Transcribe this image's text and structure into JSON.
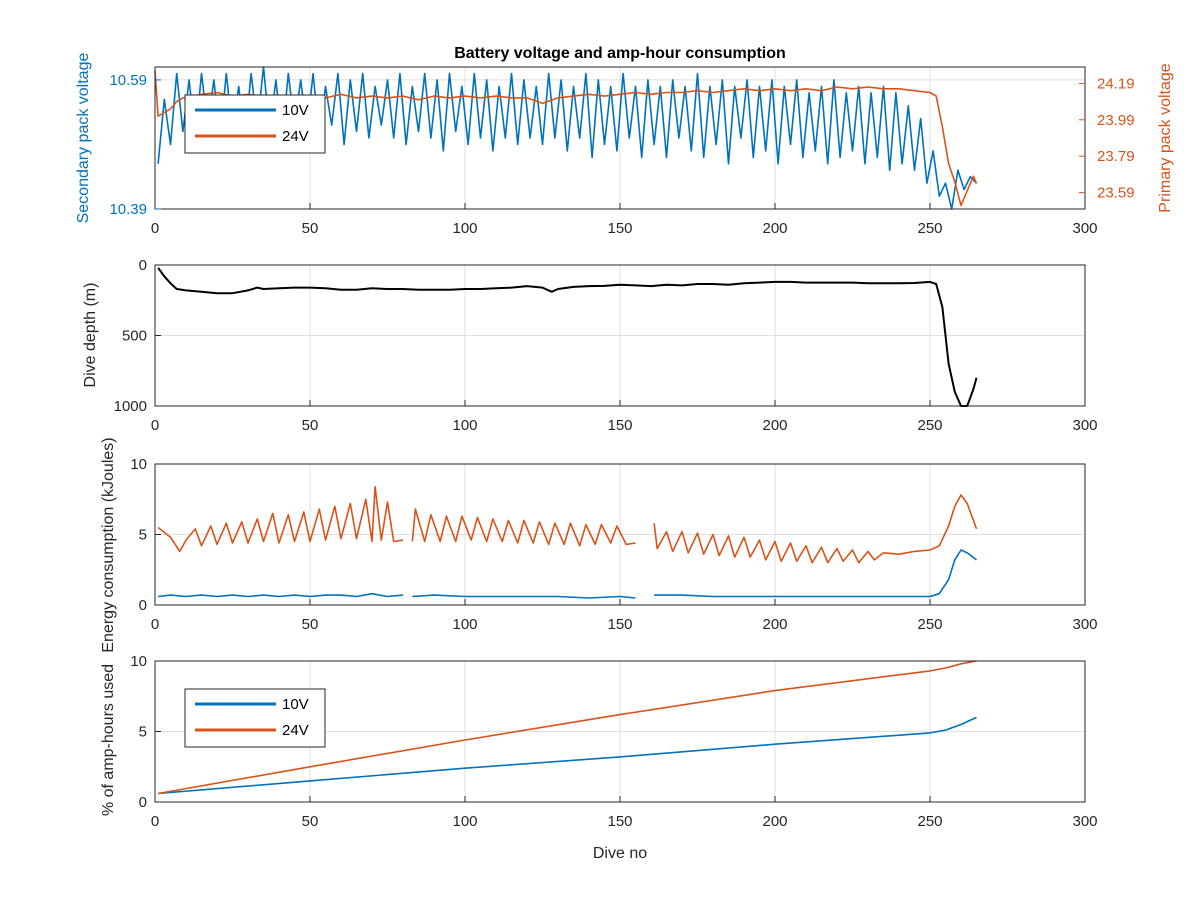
{
  "colors": {
    "c10": "#0072BD",
    "c24": "#D95319",
    "depth": "#000000",
    "grid": "#dfdfdf",
    "axis": "#262626"
  },
  "chart_data": [
    {
      "type": "line",
      "title": "Battery voltage and amp-hour consumption",
      "xlabel": "",
      "ylabel": "Secondary pack voltage",
      "ylabel_right": "Primary pack voltage",
      "xlim": [
        0,
        300
      ],
      "ylim": [
        10.39,
        10.61
      ],
      "ylim_right": [
        23.5,
        24.28
      ],
      "xticks": [
        "0",
        "50",
        "100",
        "150",
        "200",
        "250",
        "300"
      ],
      "yticks": [
        "10.39",
        "10.59"
      ],
      "yticks_right": [
        "23.59",
        "23.79",
        "23.99",
        "24.19"
      ],
      "legend": [
        "10V",
        "24V"
      ],
      "legend_position": "top-left",
      "grid": true,
      "series": [
        {
          "name": "10V",
          "axis": "left",
          "x": [
            1,
            3,
            5,
            7,
            9,
            11,
            13,
            15,
            17,
            19,
            21,
            23,
            25,
            27,
            29,
            31,
            33,
            35,
            37,
            39,
            41,
            43,
            45,
            47,
            49,
            51,
            53,
            55,
            57,
            59,
            61,
            63,
            65,
            67,
            69,
            71,
            73,
            75,
            77,
            79,
            81,
            83,
            85,
            87,
            89,
            91,
            93,
            95,
            97,
            99,
            101,
            103,
            105,
            107,
            109,
            111,
            113,
            115,
            117,
            119,
            121,
            123,
            125,
            127,
            129,
            131,
            133,
            135,
            137,
            139,
            141,
            143,
            145,
            147,
            149,
            151,
            153,
            155,
            157,
            159,
            161,
            163,
            165,
            167,
            169,
            171,
            173,
            175,
            177,
            179,
            181,
            183,
            185,
            187,
            189,
            191,
            193,
            195,
            197,
            199,
            201,
            203,
            205,
            207,
            209,
            211,
            213,
            215,
            217,
            219,
            221,
            223,
            225,
            227,
            229,
            231,
            233,
            235,
            237,
            239,
            241,
            243,
            245,
            247,
            249,
            251,
            253,
            255,
            257,
            259,
            261,
            263,
            265
          ],
          "y": [
            10.46,
            10.56,
            10.49,
            10.6,
            10.51,
            10.59,
            10.5,
            10.6,
            10.52,
            10.59,
            10.5,
            10.6,
            10.51,
            10.58,
            10.5,
            10.6,
            10.52,
            10.61,
            10.51,
            10.59,
            10.5,
            10.6,
            10.52,
            10.59,
            10.51,
            10.6,
            10.5,
            10.58,
            10.52,
            10.6,
            10.49,
            10.59,
            10.51,
            10.6,
            10.5,
            10.58,
            10.52,
            10.59,
            10.5,
            10.6,
            10.49,
            10.58,
            10.51,
            10.6,
            10.5,
            10.59,
            10.48,
            10.6,
            10.51,
            10.58,
            10.49,
            10.6,
            10.5,
            10.59,
            10.48,
            10.58,
            10.5,
            10.6,
            10.49,
            10.59,
            10.5,
            10.58,
            10.49,
            10.6,
            10.5,
            10.59,
            10.48,
            10.58,
            10.5,
            10.6,
            10.47,
            10.59,
            10.49,
            10.58,
            10.48,
            10.6,
            10.5,
            10.58,
            10.47,
            10.59,
            10.49,
            10.58,
            10.47,
            10.59,
            10.5,
            10.58,
            10.48,
            10.6,
            10.47,
            10.58,
            10.49,
            10.59,
            10.46,
            10.58,
            10.5,
            10.59,
            10.47,
            10.58,
            10.48,
            10.59,
            10.46,
            10.58,
            10.49,
            10.59,
            10.47,
            10.57,
            10.48,
            10.58,
            10.46,
            10.59,
            10.47,
            10.57,
            10.48,
            10.58,
            10.46,
            10.57,
            10.47,
            10.58,
            10.45,
            10.57,
            10.46,
            10.55,
            10.45,
            10.53,
            10.43,
            10.48,
            10.41,
            10.43,
            10.39,
            10.45,
            10.42,
            10.44,
            10.43
          ]
        },
        {
          "name": "24V",
          "axis": "right",
          "x": [
            0,
            1,
            3,
            5,
            7,
            9,
            12,
            15,
            20,
            25,
            30,
            35,
            40,
            45,
            50,
            55,
            60,
            65,
            70,
            75,
            80,
            85,
            90,
            95,
            100,
            105,
            110,
            115,
            120,
            125,
            130,
            135,
            140,
            145,
            150,
            155,
            160,
            165,
            170,
            175,
            180,
            185,
            190,
            195,
            200,
            205,
            210,
            215,
            220,
            225,
            230,
            235,
            240,
            245,
            250,
            252,
            254,
            256,
            258,
            260,
            262,
            264,
            265
          ],
          "y": [
            24.26,
            24.01,
            24.03,
            24.05,
            24.09,
            24.11,
            24.12,
            24.13,
            24.14,
            24.12,
            24.13,
            24.12,
            24.11,
            24.12,
            24.12,
            24.11,
            24.13,
            24.11,
            24.12,
            24.11,
            24.12,
            24.1,
            24.12,
            24.11,
            24.12,
            24.11,
            24.12,
            24.11,
            24.11,
            24.08,
            24.11,
            24.12,
            24.13,
            24.12,
            24.13,
            24.14,
            24.13,
            24.14,
            24.14,
            24.15,
            24.14,
            24.15,
            24.16,
            24.15,
            24.16,
            24.15,
            24.16,
            24.15,
            24.17,
            24.16,
            24.17,
            24.16,
            24.16,
            24.15,
            24.14,
            24.12,
            23.95,
            23.75,
            23.65,
            23.52,
            23.6,
            23.68,
            23.64
          ]
        }
      ]
    },
    {
      "type": "line",
      "xlabel": "",
      "ylabel": "Dive depth (m)",
      "xlim": [
        0,
        300
      ],
      "ylim": [
        0,
        1000
      ],
      "y_reversed": true,
      "xticks": [
        "0",
        "50",
        "100",
        "150",
        "200",
        "250",
        "300"
      ],
      "yticks": [
        "0",
        "500",
        "1000"
      ],
      "grid": true,
      "series": [
        {
          "x": [
            1,
            3,
            5,
            7,
            10,
            15,
            20,
            25,
            30,
            33,
            35,
            40,
            45,
            50,
            55,
            60,
            65,
            70,
            75,
            80,
            85,
            90,
            95,
            100,
            105,
            110,
            115,
            120,
            125,
            128,
            130,
            135,
            140,
            145,
            150,
            155,
            160,
            165,
            170,
            175,
            180,
            185,
            190,
            195,
            200,
            205,
            210,
            215,
            220,
            225,
            230,
            235,
            240,
            245,
            250,
            252,
            254,
            256,
            258,
            260,
            262,
            264,
            265
          ],
          "y": [
            20,
            80,
            130,
            170,
            180,
            190,
            200,
            200,
            180,
            160,
            170,
            165,
            160,
            160,
            165,
            175,
            175,
            165,
            170,
            170,
            175,
            175,
            175,
            170,
            170,
            165,
            160,
            150,
            160,
            190,
            170,
            155,
            150,
            148,
            140,
            145,
            150,
            140,
            145,
            135,
            135,
            140,
            130,
            125,
            120,
            120,
            125,
            125,
            125,
            125,
            130,
            130,
            130,
            128,
            120,
            135,
            300,
            700,
            900,
            1000,
            1000,
            880,
            800
          ]
        }
      ]
    },
    {
      "type": "line",
      "xlabel": "",
      "ylabel": "Energy consumption (kJoules)",
      "xlim": [
        0,
        300
      ],
      "ylim": [
        0,
        10
      ],
      "xticks": [
        "0",
        "50",
        "100",
        "150",
        "200",
        "250",
        "300"
      ],
      "yticks": [
        "0",
        "5",
        "10"
      ],
      "grid": true,
      "series": [
        {
          "name": "10V",
          "x": [
            1,
            5,
            10,
            15,
            20,
            25,
            30,
            35,
            40,
            45,
            50,
            55,
            60,
            65,
            70,
            75,
            80,
            null,
            83,
            90,
            100,
            110,
            120,
            130,
            140,
            150,
            155,
            null,
            161,
            170,
            180,
            190,
            200,
            210,
            220,
            230,
            240,
            250,
            253,
            256,
            258,
            260,
            262,
            265
          ],
          "y": [
            0.6,
            0.7,
            0.6,
            0.7,
            0.6,
            0.7,
            0.6,
            0.7,
            0.6,
            0.7,
            0.6,
            0.7,
            0.7,
            0.6,
            0.8,
            0.6,
            0.7,
            null,
            0.6,
            0.7,
            0.6,
            0.6,
            0.6,
            0.6,
            0.5,
            0.6,
            0.5,
            null,
            0.7,
            0.7,
            0.6,
            0.6,
            0.6,
            0.6,
            0.6,
            0.6,
            0.6,
            0.6,
            0.8,
            1.8,
            3.2,
            3.9,
            3.7,
            3.2
          ]
        },
        {
          "name": "24V",
          "x": [
            1,
            5,
            8,
            10,
            13,
            15,
            18,
            20,
            23,
            25,
            28,
            30,
            33,
            35,
            38,
            40,
            43,
            45,
            48,
            50,
            53,
            55,
            58,
            60,
            63,
            65,
            68,
            70,
            71,
            73,
            75,
            77,
            80,
            null,
            83,
            84,
            87,
            89,
            92,
            94,
            97,
            99,
            102,
            104,
            107,
            109,
            112,
            114,
            117,
            119,
            122,
            124,
            127,
            129,
            132,
            134,
            137,
            139,
            142,
            144,
            147,
            149,
            152,
            155,
            null,
            161,
            162,
            165,
            167,
            170,
            172,
            175,
            177,
            180,
            182,
            185,
            187,
            190,
            192,
            195,
            197,
            200,
            202,
            205,
            207,
            210,
            212,
            215,
            217,
            220,
            222,
            225,
            227,
            230,
            232,
            235,
            240,
            245,
            250,
            253,
            256,
            258,
            260,
            262,
            265
          ],
          "y": [
            5.5,
            4.8,
            3.8,
            4.6,
            5.4,
            4.2,
            5.6,
            4.3,
            5.8,
            4.4,
            5.9,
            4.4,
            6.1,
            4.5,
            6.5,
            4.4,
            6.4,
            4.5,
            6.6,
            4.5,
            6.8,
            4.6,
            7,
            4.7,
            7.2,
            4.7,
            7.5,
            4.5,
            8.4,
            4.6,
            7.3,
            4.5,
            4.6,
            null,
            4.5,
            6.8,
            4.5,
            6.4,
            4.5,
            6.3,
            4.5,
            6.3,
            4.6,
            6.2,
            4.5,
            6.1,
            4.5,
            6,
            4.4,
            6,
            4.4,
            5.9,
            4.3,
            5.8,
            4.3,
            5.8,
            4.2,
            5.7,
            4.3,
            5.7,
            4.4,
            5.6,
            4.3,
            4.4,
            null,
            5.8,
            4,
            5.2,
            3.8,
            5.2,
            3.7,
            5.1,
            3.6,
            5,
            3.5,
            4.9,
            3.4,
            4.8,
            3.4,
            4.6,
            3.2,
            4.5,
            3.1,
            4.4,
            3.1,
            4.2,
            3,
            4.1,
            3,
            4,
            3.1,
            3.9,
            3,
            3.8,
            3.2,
            3.7,
            3.6,
            3.8,
            3.9,
            4.2,
            5.6,
            7,
            7.8,
            7.2,
            5.4
          ]
        }
      ]
    },
    {
      "type": "line",
      "xlabel": "Dive no",
      "ylabel": "% of amp-hours used",
      "xlim": [
        0,
        300
      ],
      "ylim": [
        0,
        10
      ],
      "xticks": [
        "0",
        "50",
        "100",
        "150",
        "200",
        "250",
        "300"
      ],
      "yticks": [
        "0",
        "5",
        "10"
      ],
      "legend": [
        "10V",
        "24V"
      ],
      "legend_position": "top-left",
      "grid": true,
      "series": [
        {
          "name": "10V",
          "x": [
            1,
            50,
            100,
            150,
            200,
            250,
            255,
            260,
            265
          ],
          "y": [
            0.6,
            1.5,
            2.4,
            3.2,
            4.1,
            4.9,
            5.1,
            5.5,
            6.0
          ]
        },
        {
          "name": "24V",
          "x": [
            1,
            50,
            100,
            150,
            200,
            250,
            255,
            260,
            265
          ],
          "y": [
            0.6,
            2.5,
            4.4,
            6.2,
            7.9,
            9.3,
            9.5,
            9.8,
            10.0
          ]
        }
      ]
    }
  ]
}
